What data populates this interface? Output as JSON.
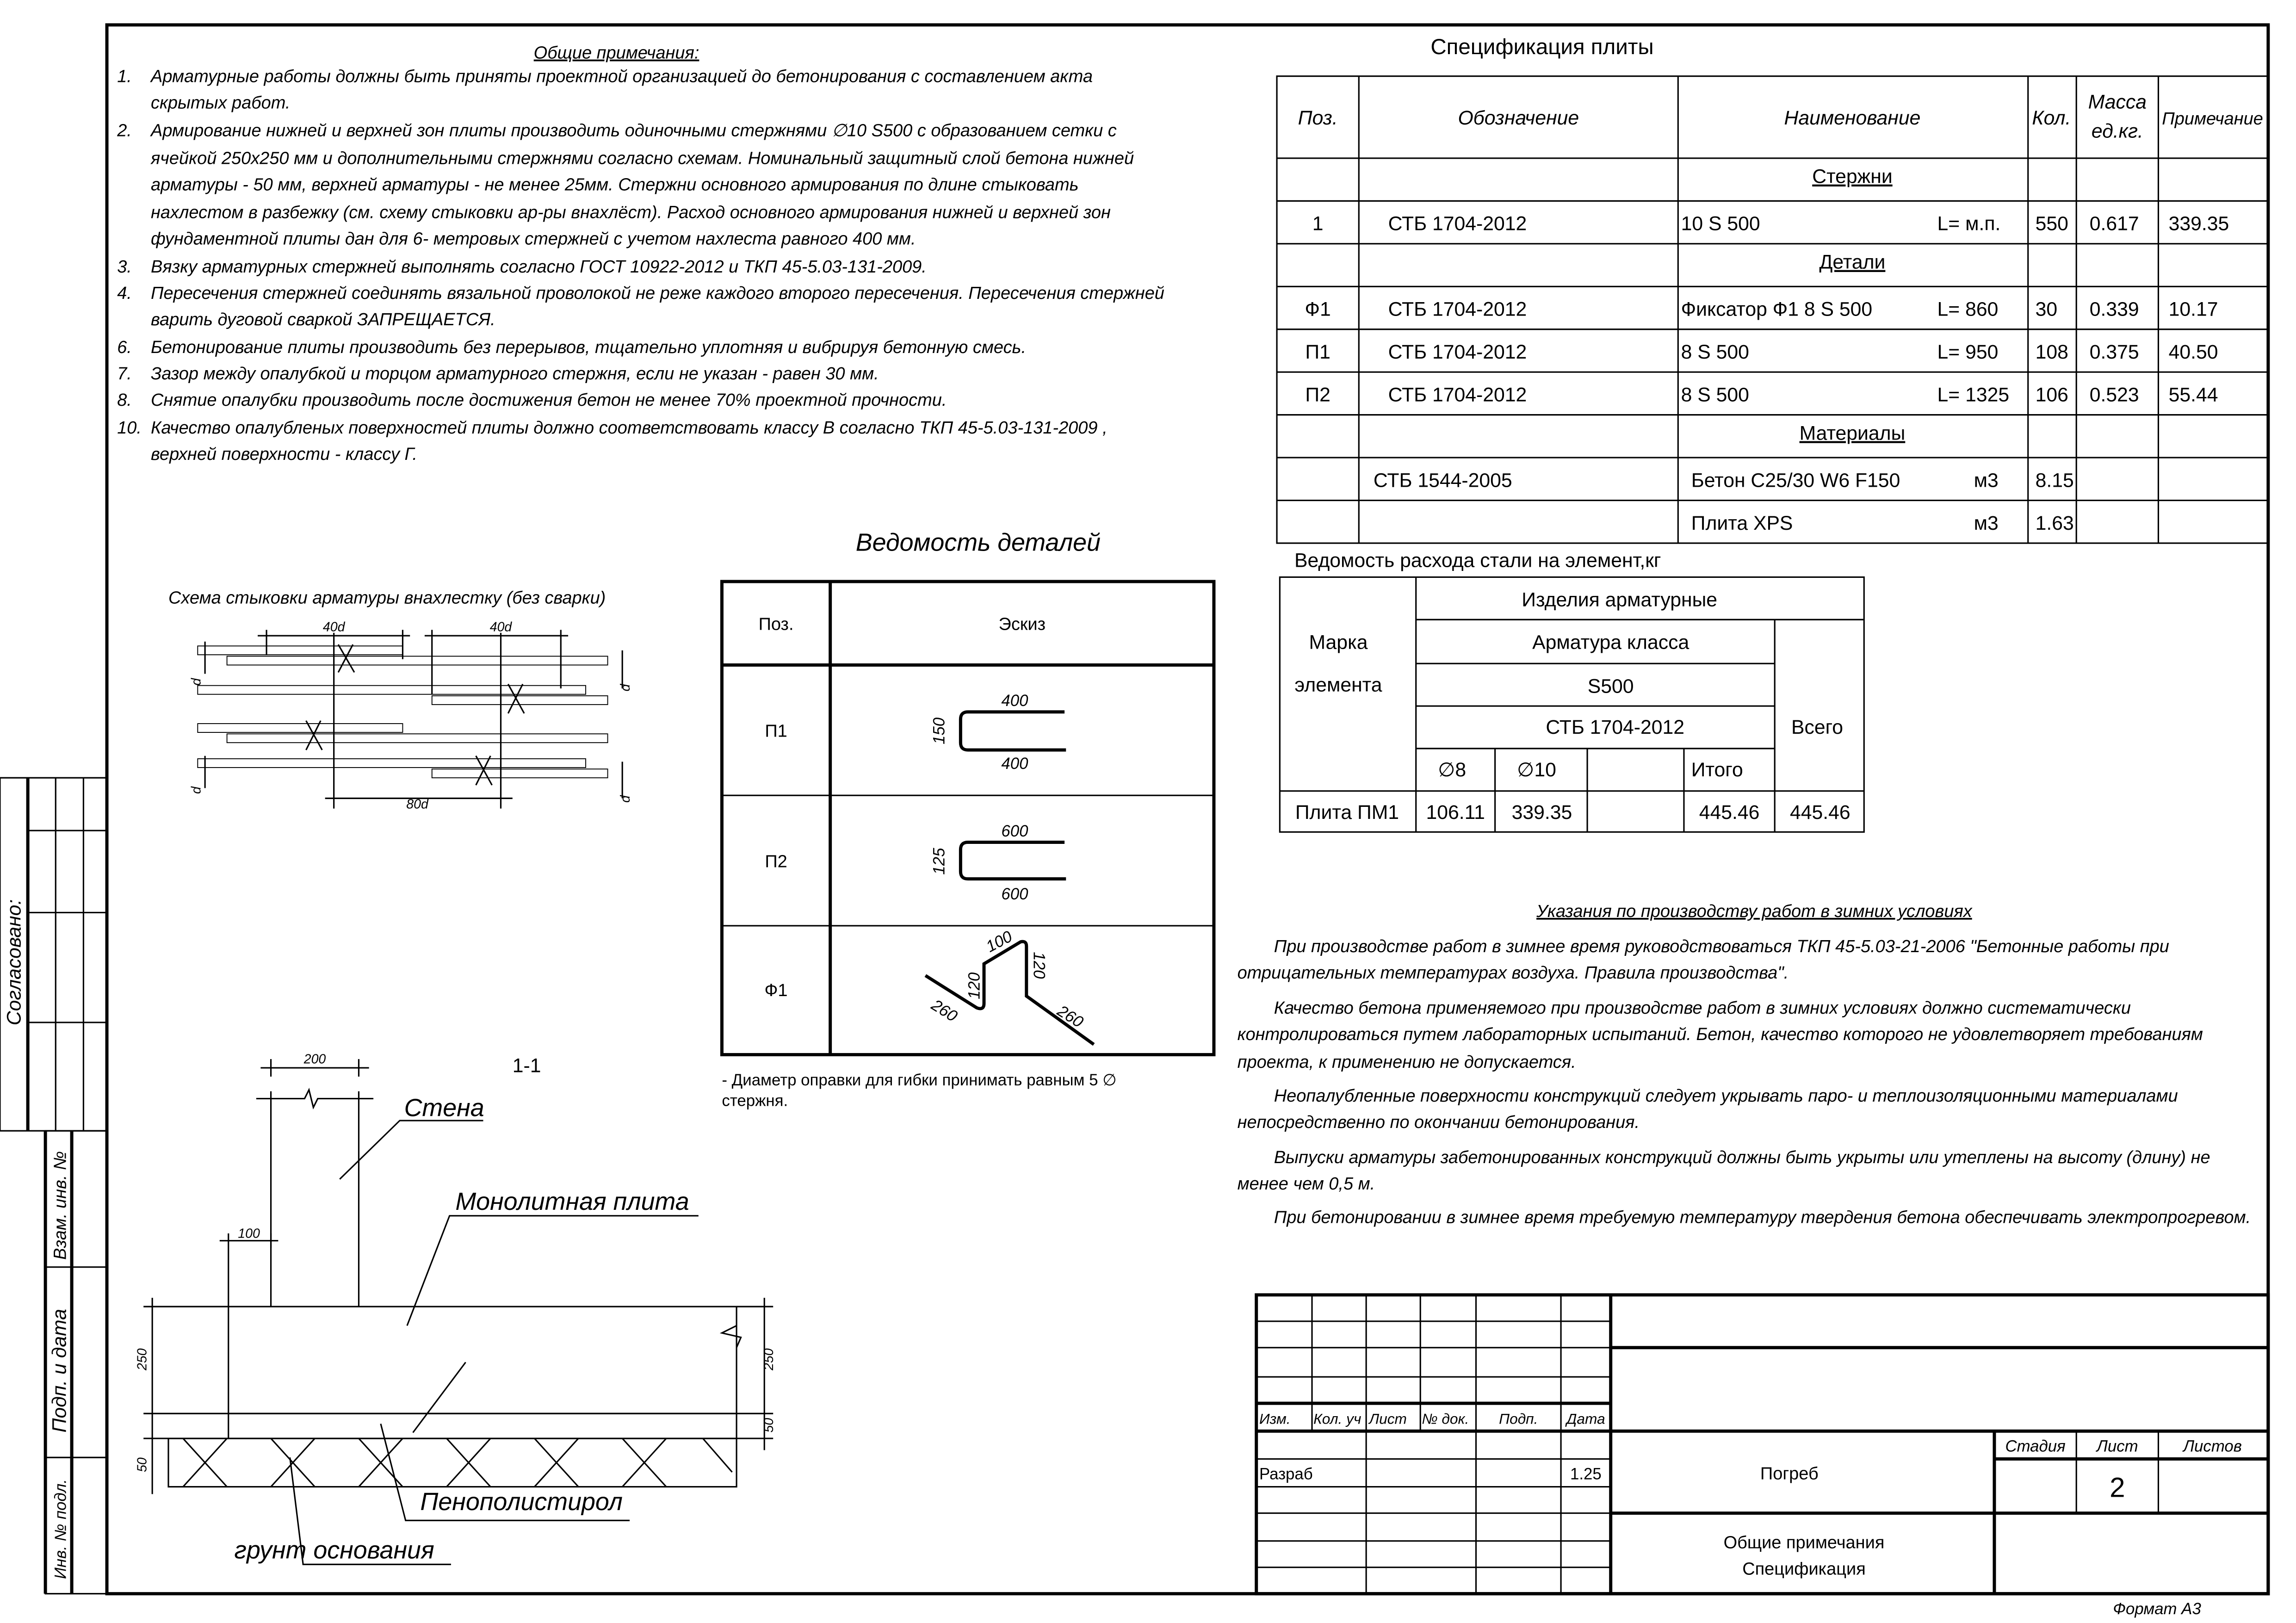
{
  "general_notes": {
    "title": "Общие примечания:",
    "items": [
      {
        "num": "1.",
        "lines": [
          "Арматурные работы должны быть приняты проектной организацией до  бетонирования с составлением акта",
          "скрытых работ."
        ]
      },
      {
        "num": "2.",
        "lines": [
          "Армирование нижней и верхней зон плиты производить одиночными стержнями ∅10 S500 с образованием сетки с",
          "ячейкой 250х250 мм и дополнительными стержнями согласно схемам. Номинальный защитный слой бетона нижней",
          "арматуры - 50 мм, верхней арматуры - не менее 25мм. Стержни основного армирования по длине стыковать",
          "нахлестом в разбежку (см. схему стыковки ар-ры внахлёст). Расход основного армирования нижней и верхней зон",
          "фундаментной плиты дан для 6- метровых стержней с учетом нахлеста равного 400 мм."
        ]
      },
      {
        "num": "3.",
        "lines": [
          "Вязку арматурных стержней выполнять согласно ГОСТ 10922-2012 и ТКП 45-5.03-131-2009."
        ]
      },
      {
        "num": "4.",
        "lines": [
          "Пересечения стержней соединять вязальной проволокой не реже каждого второго пересечения. Пересечения стержней",
          "варить дуговой сваркой ЗАПРЕЩАЕТСЯ."
        ]
      },
      {
        "num": "6.",
        "lines": [
          "Бетонирование  плиты производить без перерывов, тщательно уплотняя и вибрируя бетонную смесь."
        ]
      },
      {
        "num": "7.",
        "lines": [
          "Зазор между опалубкой и торцом арматурного стержня, если не указан - равен 30 мм."
        ]
      },
      {
        "num": "8.",
        "lines": [
          "Снятие опалубки производить после достижения бетон не менее 70% проектной прочности."
        ]
      },
      {
        "num": "10.",
        "lines": [
          "Качество опалубленых поверхностей плиты должно соответствовать классу В согласно ТКП 45-5.03-131-2009 ,",
          "верхней поверхности - классу Г."
        ]
      }
    ]
  },
  "spec": {
    "title": "Спецификация плиты",
    "headers": {
      "pos": "Поз.",
      "designation": "Обозначение",
      "name": "Наименование",
      "qty": "Кол.",
      "mass_1": "Масса",
      "mass_2": "ед.кг.",
      "note": "Примечание"
    },
    "rows": [
      {
        "section": "Стержни"
      },
      {
        "pos": "1",
        "designation": "СТБ 1704-2012",
        "name": "10 S 500",
        "extra": "L= м.п.",
        "qty": "550",
        "mass": "0.617",
        "note": "339.35"
      },
      {
        "section": "Детали"
      },
      {
        "pos": "Ф1",
        "designation": "СТБ 1704-2012",
        "name": "Фиксатор Ф1  8  S 500",
        "extra": "L= 860",
        "qty": "30",
        "mass": "0.339",
        "note": "10.17"
      },
      {
        "pos": "П1",
        "designation": "СТБ 1704-2012",
        "name": "8  S 500",
        "extra": "L= 950",
        "qty": "108",
        "mass": "0.375",
        "note": "40.50"
      },
      {
        "pos": "П2",
        "designation": "СТБ 1704-2012",
        "name": "8  S 500",
        "extra": "L= 1325",
        "qty": "106",
        "mass": "0.523",
        "note": "55.44"
      },
      {
        "section": "Материалы"
      },
      {
        "pos": "",
        "designation": "СТБ 1544-2005",
        "name": "Бетон С25/30 W6 F150",
        "extra": "м3",
        "qty": "8.15",
        "mass": "",
        "note": ""
      },
      {
        "pos": "",
        "designation": "",
        "name": "Плита XPS",
        "extra": "м3",
        "qty": "1.63",
        "mass": "",
        "note": ""
      }
    ]
  },
  "steel": {
    "title": "Ведомость расхода стали на элемент,кг",
    "mark_1": "Марка",
    "mark_2": "элемента",
    "products": "Изделия арматурные",
    "rebar_class": "Арматура класса",
    "grade": "S500",
    "standard": "СТБ 1704-2012",
    "total_all": "Всего",
    "cols": [
      "∅8",
      "∅10",
      "",
      "Итого"
    ],
    "row": {
      "mark": "Плита ПМ1",
      "values": [
        "106.11",
        "339.35",
        "",
        "445.46"
      ],
      "total": "445.46"
    }
  },
  "details": {
    "title": "Ведомость деталей",
    "headers": {
      "pos": "Поз.",
      "sketch": "Эскиз"
    },
    "rows": [
      {
        "pos": "П1",
        "dims": {
          "top": "400",
          "bottom": "400",
          "height": "150"
        }
      },
      {
        "pos": "П2",
        "dims": {
          "top": "600",
          "bottom": "600",
          "height": "125"
        }
      },
      {
        "pos": "Ф1",
        "dims": {
          "top": "100",
          "left_leg": "120",
          "right_leg": "120",
          "left_arm": "260",
          "right_arm": "260"
        }
      }
    ],
    "note_1": "- Диаметр оправки для гибки принимать равным 5 ∅",
    "note_2": "стержня."
  },
  "lap_scheme": {
    "title": "Схема стыковки арматуры внахлестку (без сварки)",
    "dim_lap_1": "40d",
    "dim_lap_2": "40d",
    "dim_offset": "80d",
    "dim_d": "d"
  },
  "section": {
    "title": "1-1",
    "dim_wall": "200",
    "dim_offset": "100",
    "dim_slab": "250",
    "dim_eps": "50",
    "dim_ground": "50",
    "label_wall": "Стена",
    "label_slab": "Монолитная плита",
    "label_eps": "Пенополистирол",
    "label_ground": "грунт основания"
  },
  "winter": {
    "title": "Указания по производству работ в зимних условиях",
    "paragraphs": [
      [
        "При производстве работ в зимнее время руководствоваться ТКП 45-5.03-21-2006 \"Бетонные работы при",
        "отрицательных температурах воздуха. Правила производства\"."
      ],
      [
        "Качество бетона применяемого при производстве работ в зимних условиях должно систематически",
        "контролироваться путем лабораторных испытаний. Бетон, качество которого не удовлетворяет требованиям",
        "проекта, к применению не допускается."
      ],
      [
        "Неопалубленные поверхности конструкций следует укрывать паро- и теплоизоляционными материалами",
        "непосредственно по окончании бетонирования."
      ],
      [
        "Выпуски арматуры забетонированных конструкций должны быть укрыты или утеплены на высоту (длину) не",
        "менее чем 0,5 м."
      ],
      [
        "При бетонировании в зимнее время требуемую температуру твердения бетона обеспечивать  электропрогревом."
      ]
    ]
  },
  "side_stamp": {
    "agreed": "Согласовано:",
    "replaced_inv": "Взам. инв. №",
    "sign_date": "Подп. и дата",
    "inv_orig": "Инв. № подл."
  },
  "title_block": {
    "headers": [
      "Изм.",
      "Кол. уч",
      "Лист",
      "№ док.",
      "Подп.",
      "Дата"
    ],
    "role": "Разраб",
    "date": "1.25",
    "object": "Погреб",
    "sheet_title_1": "Общие примечания",
    "sheet_title_2": "Спецификация",
    "stage_label": "Стадия",
    "sheet_label": "Лист",
    "sheets_label": "Листов",
    "sheet_number": "2",
    "format": "Формат А3"
  }
}
